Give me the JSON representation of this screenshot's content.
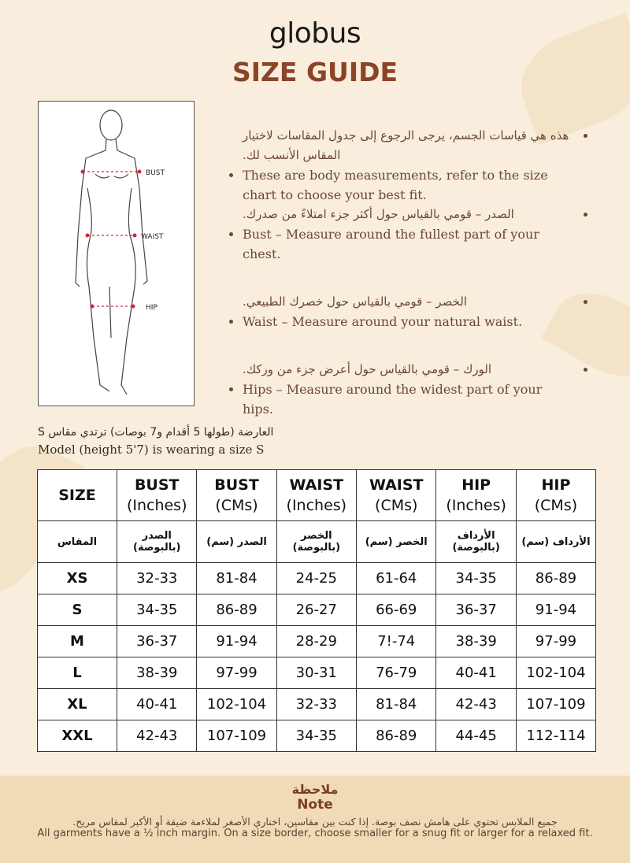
{
  "brand": "globus",
  "title": "SIZE GUIDE",
  "colors": {
    "background": "#f9eedd",
    "title": "#8b4428",
    "text": "#6b4636",
    "note_band": "#f1dbb6",
    "marker": "#d0283a"
  },
  "figure": {
    "labels": [
      "BUST",
      "WAIST",
      "HIP"
    ]
  },
  "bullets": [
    {
      "ar": "هذه هي قياسات الجسم، يرجى الرجوع إلى جدول المقاسات لاختيار المقاس الأنسب لك.",
      "en": "These are body measurements, refer to the size chart to choose your best fit."
    },
    {
      "ar": "الصدر – قومي بالقياس حول أكثر جزء امتلاءً من صدرك.",
      "en": "Bust – Measure around the fullest part of your chest."
    },
    {
      "ar": "الخصر – قومي بالقياس حول خصرك الطبيعي.",
      "en": "Waist – Measure around your natural waist."
    },
    {
      "ar": "الورك – قومي بالقياس حول أعرض جزء من وركك.",
      "en": "Hips – Measure around the widest part of your hips."
    }
  ],
  "model": {
    "ar": "العارضة (طولها 5 أقدام و7 بوصات) ترتدي مقاس S",
    "en": "Model (height 5'7) is wearing a size S"
  },
  "table": {
    "headers": [
      [
        "SIZE",
        ""
      ],
      [
        "BUST",
        "(Inches)"
      ],
      [
        "BUST",
        "(CMs)"
      ],
      [
        "WAIST",
        "(Inches)"
      ],
      [
        "WAIST",
        "(CMs)"
      ],
      [
        "HIP",
        "(Inches)"
      ],
      [
        "HIP",
        "(CMs)"
      ]
    ],
    "ar_headers": [
      "المقاس",
      "الصدر (بالبوصة)",
      "الصدر (سم)",
      "الخصر (بالبوصة)",
      "الخصر (سم)",
      "الأرداف (بالبوصة)",
      "الأرداف (سم)"
    ],
    "rows": [
      [
        "XS",
        "32-33",
        "81-84",
        "24-25",
        "61-64",
        "34-35",
        "86-89"
      ],
      [
        "S",
        "34-35",
        "86-89",
        "26-27",
        "66-69",
        "36-37",
        "91-94"
      ],
      [
        "M",
        "36-37",
        "91-94",
        "28-29",
        "7!-74",
        "38-39",
        "97-99"
      ],
      [
        "L",
        "38-39",
        "97-99",
        "30-31",
        "76-79",
        "40-41",
        "102-104"
      ],
      [
        "XL",
        "40-41",
        "102-104",
        "32-33",
        "81-84",
        "42-43",
        "107-109"
      ],
      [
        "XXL",
        "42-43",
        "107-109",
        "34-35",
        "86-89",
        "44-45",
        "112-114"
      ]
    ]
  },
  "note": {
    "title_ar": "ملاحظة",
    "title_en": "Note",
    "text_ar": "جميع الملابس تحتوي على هامش نصف بوصة. إذا كنت بين مقاسين، اختاري الأصغر لملاءمة ضيقة أو الأكبر لمقاس مريح.",
    "text_en": "All garments have a ½ inch margin. On a size border, choose smaller for a snug fit or larger for a relaxed fit."
  }
}
